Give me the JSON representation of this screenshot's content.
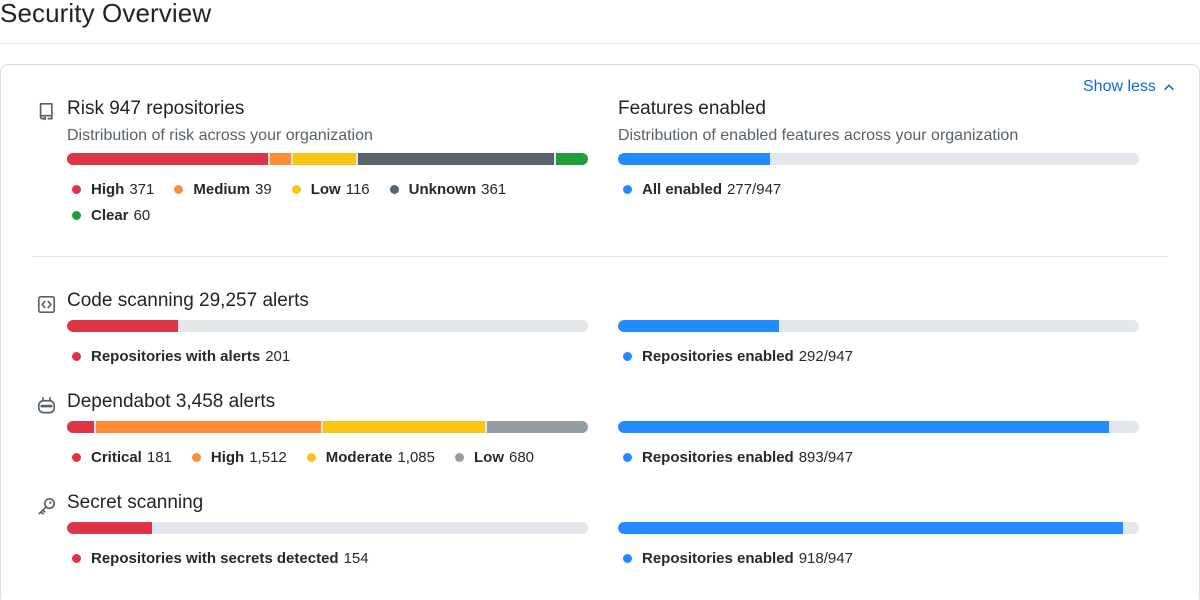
{
  "page": {
    "title": "Security Overview"
  },
  "toggle": {
    "label": "Show less"
  },
  "colors": {
    "red": "#dc3545",
    "orange": "#fd8c34",
    "yellow": "#f9c512",
    "gray_dark": "#59636e",
    "green": "#1f9e3b",
    "blue": "#218bff",
    "gray_light": "#959da5",
    "track": "#e3e6ea"
  },
  "risk": {
    "title": "Risk",
    "count": "947 repositories",
    "subtitle": "Distribution of risk across your organization",
    "legend": [
      {
        "label": "High",
        "value": "371",
        "count": 371,
        "color": "#dc3545"
      },
      {
        "label": "Medium",
        "value": "39",
        "count": 39,
        "color": "#fd8c34"
      },
      {
        "label": "Low",
        "value": "116",
        "count": 116,
        "color": "#f9c512"
      },
      {
        "label": "Unknown",
        "value": "361",
        "count": 361,
        "color": "#59636e"
      },
      {
        "label": "Clear",
        "value": "60",
        "count": 60,
        "color": "#1f9e3b"
      }
    ]
  },
  "features": {
    "title": "Features enabled",
    "subtitle": "Distribution of enabled features across your organization",
    "legend": [
      {
        "label": "All enabled",
        "value": "277/947",
        "fraction": 0.2925,
        "color": "#218bff"
      }
    ]
  },
  "code_scanning": {
    "title": "Code scanning",
    "count": "29,257 alerts",
    "alerts_fraction": 0.2122,
    "alerts_legend": [
      {
        "label": "Repositories with alerts",
        "value": "201",
        "color": "#dc3545"
      }
    ],
    "enabled_fraction": 0.3083,
    "enabled_legend": [
      {
        "label": "Repositories enabled",
        "value": "292/947",
        "color": "#218bff"
      }
    ]
  },
  "dependabot": {
    "title": "Dependabot",
    "count": "3,458 alerts",
    "alerts_legend": [
      {
        "label": "Critical",
        "value": "181",
        "count": 181,
        "color": "#dc3545"
      },
      {
        "label": "High",
        "value": "1,512",
        "count": 1512,
        "color": "#fd8c34"
      },
      {
        "label": "Moderate",
        "value": "1,085",
        "count": 1085,
        "color": "#f9c512"
      },
      {
        "label": "Low",
        "value": "680",
        "count": 680,
        "color": "#959da5"
      }
    ],
    "enabled_fraction": 0.943,
    "enabled_legend": [
      {
        "label": "Repositories enabled",
        "value": "893/947",
        "color": "#218bff"
      }
    ]
  },
  "secret_scanning": {
    "title": "Secret scanning",
    "alerts_fraction": 0.1626,
    "alerts_legend": [
      {
        "label": "Repositories with secrets detected",
        "value": "154",
        "color": "#dc3545"
      }
    ],
    "enabled_fraction": 0.9694,
    "enabled_legend": [
      {
        "label": "Repositories enabled",
        "value": "918/947",
        "color": "#218bff"
      }
    ]
  }
}
